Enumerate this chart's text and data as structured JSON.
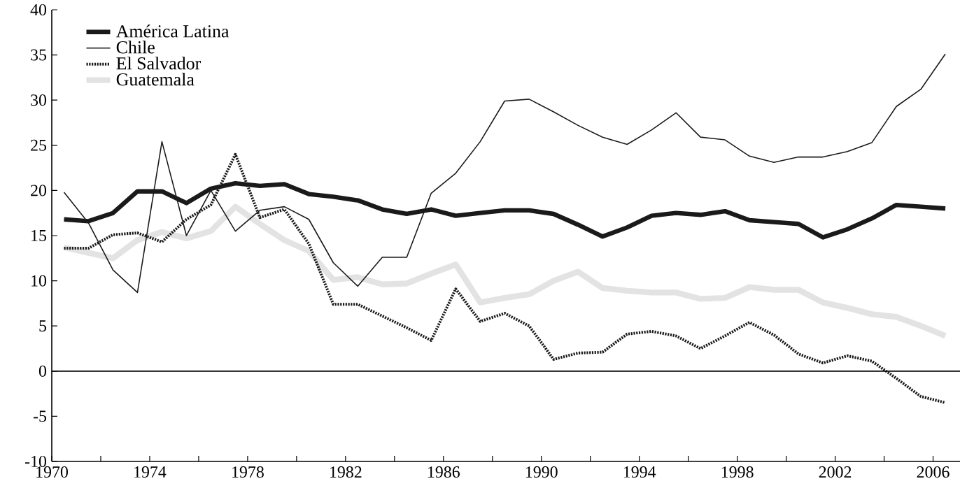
{
  "chart_data": {
    "type": "line",
    "x": [
      1970.5,
      1971.5,
      1972.5,
      1973.5,
      1974.5,
      1975.5,
      1976.5,
      1977.5,
      1978.5,
      1979.5,
      1980.5,
      1981.5,
      1982.5,
      1983.5,
      1984.5,
      1985.5,
      1986.5,
      1987.5,
      1988.5,
      1989.5,
      1990.5,
      1991.5,
      1992.5,
      1993.5,
      1994.5,
      1995.5,
      1996.5,
      1997.5,
      1998.5,
      1999.5,
      2000.5,
      2001.5,
      2002.5,
      2003.5,
      2004.5,
      2005.5,
      2006.5
    ],
    "series": [
      {
        "name": "América Latina",
        "color": "#1a1a1a",
        "line_style": "solid",
        "values": [
          16.8,
          16.6,
          17.5,
          19.9,
          19.9,
          18.6,
          20.2,
          20.8,
          20.5,
          20.7,
          19.6,
          19.3,
          18.9,
          17.9,
          17.4,
          17.9,
          17.2,
          17.5,
          17.8,
          17.8,
          17.4,
          16.2,
          14.9,
          15.9,
          17.2,
          17.5,
          17.3,
          17.7,
          16.7,
          16.5,
          16.3,
          14.8,
          15.7,
          16.9,
          18.4,
          18.2,
          18.0
        ]
      },
      {
        "name": "Chile",
        "color": "#1a1a1a",
        "line_style": "solid",
        "values": [
          19.8,
          16.4,
          11.2,
          8.7,
          25.4,
          15.0,
          20.0,
          15.5,
          17.8,
          18.2,
          16.8,
          12.0,
          9.4,
          12.6,
          12.6,
          19.7,
          21.9,
          25.4,
          29.9,
          30.1,
          28.7,
          27.2,
          25.9,
          25.1,
          26.7,
          28.6,
          25.9,
          25.6,
          23.8,
          23.1,
          23.7,
          23.7,
          24.3,
          25.3,
          29.3,
          31.2,
          35.1
        ]
      },
      {
        "name": "El Salvador",
        "color": "#1a1a1a",
        "line_style": "dotted",
        "values": [
          13.6,
          13.6,
          15.1,
          15.3,
          14.3,
          16.8,
          18.4,
          24.0,
          17.0,
          17.9,
          14.1,
          7.4,
          7.4,
          6.1,
          4.8,
          3.4,
          9.1,
          5.5,
          6.4,
          5.0,
          1.3,
          2.0,
          2.1,
          4.1,
          4.4,
          3.9,
          2.5,
          3.9,
          5.4,
          4.0,
          1.9,
          0.9,
          1.7,
          1.1,
          -0.8,
          -2.8,
          -3.5
        ]
      },
      {
        "name": "Guatemala",
        "color": "#e3e3e3",
        "line_style": "solid",
        "values": [
          13.7,
          13.1,
          12.5,
          14.5,
          15.4,
          14.7,
          15.5,
          18.2,
          16.3,
          14.5,
          13.3,
          10.1,
          10.4,
          9.6,
          9.7,
          10.8,
          11.8,
          7.6,
          8.1,
          8.5,
          10.0,
          11.0,
          9.2,
          8.9,
          8.7,
          8.7,
          8.0,
          8.1,
          9.3,
          9.0,
          9.0,
          7.6,
          7.0,
          6.3,
          6.0,
          5.0,
          3.9
        ]
      }
    ],
    "xlim": [
      1970,
      2007.1
    ],
    "xticks": [
      1970,
      {
        "value": 1972,
        "label": null
      },
      1974,
      {
        "value": 1976,
        "label": null
      },
      1978,
      {
        "value": 1980,
        "label": null
      },
      1982,
      {
        "value": 1984,
        "label": null
      },
      1986,
      {
        "value": 1988,
        "label": null
      },
      1990,
      {
        "value": 1992,
        "label": null
      },
      1994,
      {
        "value": 1996,
        "label": null
      },
      1998,
      {
        "value": 2000,
        "label": null
      },
      2002,
      {
        "value": 2004,
        "label": null
      },
      2006
    ],
    "ylim": [
      -10,
      40
    ],
    "yticks": [
      -10,
      -5,
      0,
      5,
      10,
      15,
      20,
      25,
      30,
      35,
      40
    ],
    "ref_lines": [
      {
        "axis": "y",
        "value": 0
      }
    ],
    "legend": "top left",
    "grid": false,
    "marker": "none"
  }
}
